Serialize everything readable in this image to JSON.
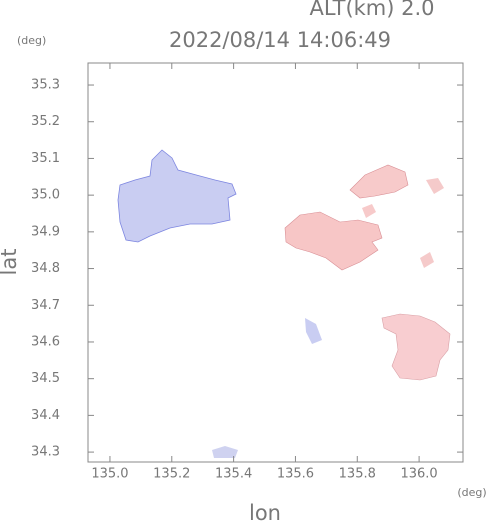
{
  "chart_data": {
    "type": "map",
    "title": "2022/08/14 14:06:49",
    "annotation": "ALT(km) 2.0",
    "y_unit": "(deg)",
    "x_unit": "(deg)",
    "xlabel": "lon",
    "ylabel": "lat",
    "xlim": [
      134.929,
      136.142
    ],
    "ylim": [
      34.273,
      35.36
    ],
    "xticks": [
      {
        "value": 135,
        "label": "135.0"
      },
      135.2,
      135.4,
      135.6,
      135.8,
      {
        "value": 136,
        "label": "136.0"
      }
    ],
    "yticks": [
      34.3,
      34.4,
      34.5,
      34.6,
      34.7,
      34.8,
      34.9,
      {
        "value": 35,
        "label": "35.0"
      },
      35.1,
      35.2,
      35.3
    ]
  }
}
